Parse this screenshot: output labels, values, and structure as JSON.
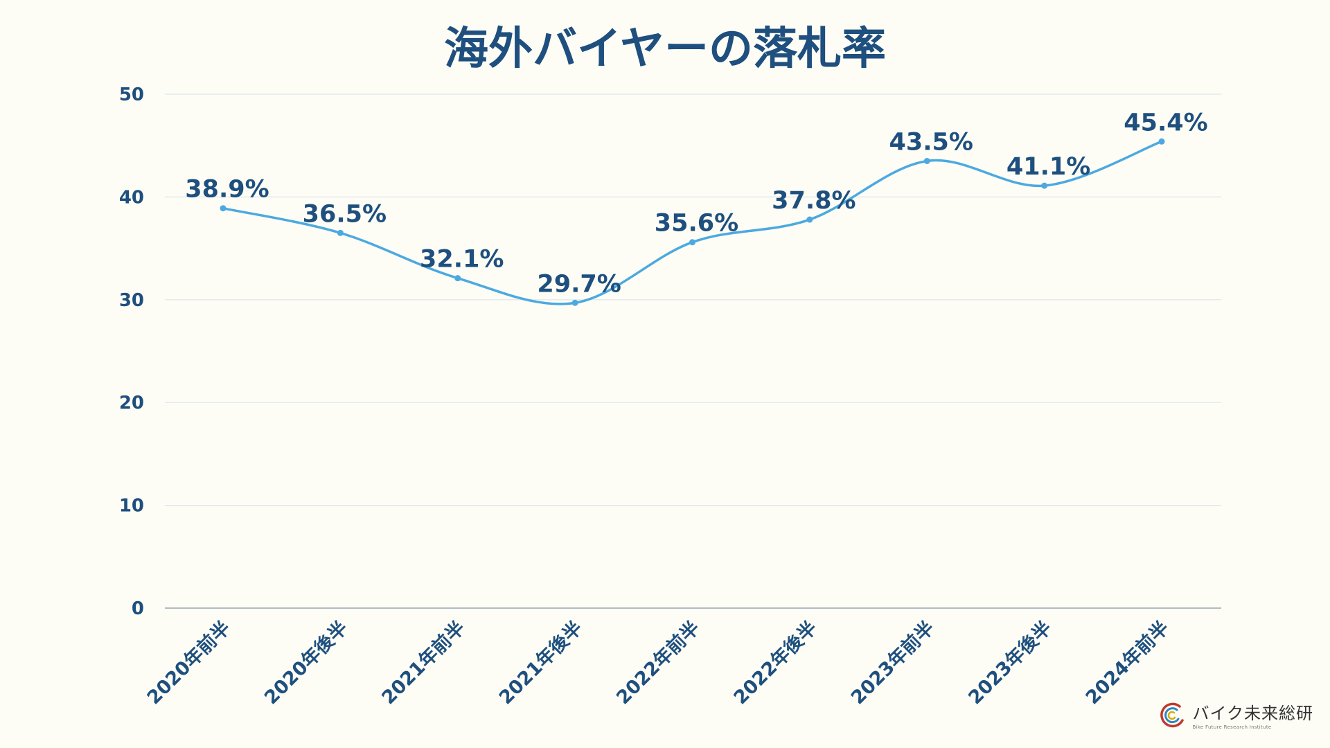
{
  "colors": {
    "background": "#fdfdf6",
    "title": "#1e4f7e",
    "line": "#4ca9e0",
    "text": "#1e4f7e",
    "grid": "#dde4ea",
    "axis": "#9aa5b1"
  },
  "chart_data": {
    "type": "line",
    "title": "海外バイヤーの落札率",
    "xlabel": "",
    "ylabel": "",
    "categories": [
      "2020年前半",
      "2020年後半",
      "2021年前半",
      "2021年後半",
      "2022年前半",
      "2022年後半",
      "2023年前半",
      "2023年後半",
      "2024年前半"
    ],
    "series": [
      {
        "values": [
          38.9,
          36.5,
          32.1,
          29.7,
          35.6,
          37.8,
          43.5,
          41.1,
          45.4
        ]
      }
    ],
    "data_labels": [
      "38.9%",
      "36.5%",
      "32.1%",
      "29.7%",
      "35.6%",
      "37.8%",
      "43.5%",
      "41.1%",
      "45.4%"
    ],
    "ylim": [
      0,
      50
    ],
    "yticks": [
      0,
      10,
      20,
      30,
      40,
      50
    ],
    "grid": true,
    "legend": "none",
    "smooth": true
  },
  "logo": {
    "text": "バイク未来総研",
    "subtext": "Bike Future Research Institute",
    "icon": "bike-future-logo-icon"
  }
}
